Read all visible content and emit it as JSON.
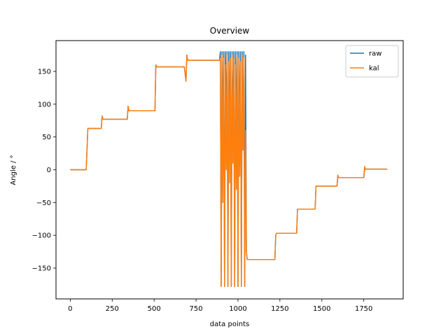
{
  "chart_data": {
    "type": "line",
    "title": "Overview",
    "xlabel": "data points",
    "ylabel": "Angle / °",
    "xlim": [
      -85,
      1985
    ],
    "ylim": [
      -197,
      197
    ],
    "xticks": [
      0,
      250,
      500,
      750,
      1000,
      1250,
      1500,
      1750
    ],
    "yticks": [
      -150,
      -100,
      -50,
      0,
      50,
      100,
      150
    ],
    "xtick_labels": [
      "0",
      "250",
      "500",
      "750",
      "1000",
      "1250",
      "1500",
      "1750"
    ],
    "ytick_labels": [
      "−150",
      "−100",
      "−50",
      "0",
      "50",
      "100",
      "150"
    ],
    "grid": false,
    "legend_position": "top-right",
    "series": [
      {
        "name": "raw",
        "color": "#1f77b4",
        "x": [
          0,
          95,
          100,
          105,
          185,
          190,
          195,
          340,
          345,
          350,
          505,
          510,
          515,
          680,
          690,
          695,
          700,
          890,
          895,
          900,
          905,
          910,
          915,
          920,
          925,
          930,
          935,
          940,
          945,
          950,
          955,
          960,
          965,
          970,
          975,
          980,
          985,
          990,
          995,
          1000,
          1005,
          1010,
          1015,
          1020,
          1025,
          1030,
          1035,
          1040,
          1045,
          1050,
          1055,
          1060,
          1220,
          1225,
          1230,
          1350,
          1355,
          1360,
          1460,
          1465,
          1470,
          1590,
          1595,
          1600,
          1750,
          1755,
          1760,
          1890
        ],
        "y": [
          0,
          0,
          30,
          63,
          63,
          82,
          77,
          77,
          97,
          90,
          90,
          160,
          157,
          157,
          135,
          175,
          167,
          167,
          180,
          -178,
          180,
          60,
          180,
          -178,
          180,
          75,
          180,
          -178,
          180,
          40,
          180,
          -178,
          180,
          55,
          180,
          -178,
          180,
          60,
          180,
          -178,
          180,
          45,
          180,
          -178,
          180,
          30,
          180,
          -178,
          175,
          -125,
          -137,
          -137,
          -137,
          -100,
          -97,
          -97,
          -60,
          -60,
          -60,
          -25,
          -25,
          -25,
          -12,
          -12,
          -12,
          0,
          1,
          1
        ]
      },
      {
        "name": "kal",
        "color": "#ff7f0e",
        "x": [
          0,
          95,
          100,
          105,
          185,
          190,
          195,
          340,
          345,
          350,
          505,
          510,
          515,
          680,
          690,
          695,
          700,
          890,
          895,
          900,
          905,
          910,
          915,
          920,
          925,
          930,
          935,
          940,
          945,
          950,
          955,
          960,
          965,
          970,
          975,
          980,
          985,
          990,
          995,
          1000,
          1005,
          1010,
          1015,
          1020,
          1025,
          1030,
          1035,
          1040,
          1045,
          1050,
          1055,
          1060,
          1220,
          1225,
          1230,
          1350,
          1355,
          1360,
          1460,
          1465,
          1470,
          1590,
          1595,
          1600,
          1750,
          1755,
          1760,
          1890
        ],
        "y": [
          0,
          0,
          30,
          63,
          63,
          82,
          77,
          77,
          97,
          90,
          90,
          160,
          157,
          157,
          135,
          175,
          167,
          167,
          170,
          -178,
          175,
          -50,
          170,
          -178,
          160,
          0,
          175,
          -178,
          165,
          -20,
          170,
          -178,
          175,
          10,
          170,
          -178,
          160,
          -30,
          175,
          -178,
          170,
          -10,
          165,
          -178,
          175,
          30,
          170,
          -178,
          60,
          -125,
          -137,
          -137,
          -137,
          -100,
          -97,
          -97,
          -60,
          -60,
          -60,
          -25,
          -25,
          -25,
          -8,
          -12,
          -12,
          5,
          1,
          1
        ]
      }
    ]
  }
}
